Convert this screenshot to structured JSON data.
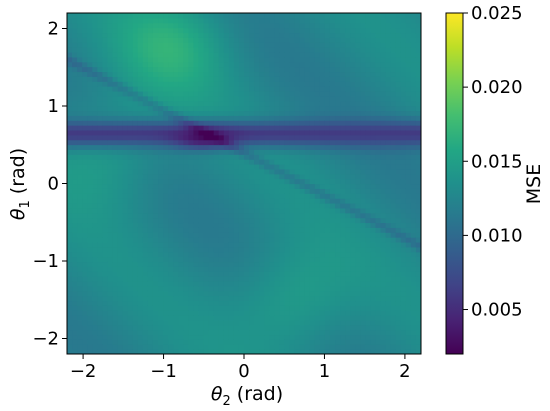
{
  "chart_data": {
    "type": "heatmap",
    "title": "",
    "xlabel": {
      "symbol": "θ",
      "subscript": "2",
      "suffix": " (rad)"
    },
    "ylabel": {
      "symbol": "θ",
      "subscript": "1",
      "suffix": " (rad)"
    },
    "xlim": [
      -2.2,
      2.2
    ],
    "ylim": [
      -2.2,
      2.2
    ],
    "xticks": [
      {
        "value": -2,
        "label": "−2"
      },
      {
        "value": -1,
        "label": "−1"
      },
      {
        "value": 0,
        "label": "0"
      },
      {
        "value": 1,
        "label": "1"
      },
      {
        "value": 2,
        "label": "2"
      }
    ],
    "yticks": [
      {
        "value": -2,
        "label": "−2"
      },
      {
        "value": -1,
        "label": "−1"
      },
      {
        "value": 0,
        "label": "0"
      },
      {
        "value": 1,
        "label": "1"
      },
      {
        "value": 2,
        "label": "2"
      }
    ],
    "colormap": "viridis",
    "colorbar": {
      "label": "MSE",
      "vmin": 0.002,
      "vmax": 0.025,
      "ticks": [
        {
          "value": 0.005,
          "label": "0.005"
        },
        {
          "value": 0.01,
          "label": "0.010"
        },
        {
          "value": 0.015,
          "label": "0.015"
        },
        {
          "value": 0.02,
          "label": "0.020"
        },
        {
          "value": 0.025,
          "label": "0.025"
        }
      ]
    },
    "grid": false,
    "approx_values": {
      "background_mse": 0.0125,
      "min_mse_band": {
        "theta1_center": 0.65,
        "theta1_halfwidth": 0.12,
        "mse": 0.006
      },
      "deepest_minimum": {
        "theta2": -0.5,
        "theta1": 0.6,
        "mse": 0.003
      },
      "higher_mse_regions": [
        {
          "theta2": -0.9,
          "theta1": 1.8,
          "mse": 0.016
        },
        {
          "theta2": 0.6,
          "theta1": -1.5,
          "mse": 0.0155
        },
        {
          "theta2": -1.7,
          "theta1": 0.4,
          "mse": 0.015
        }
      ]
    }
  }
}
